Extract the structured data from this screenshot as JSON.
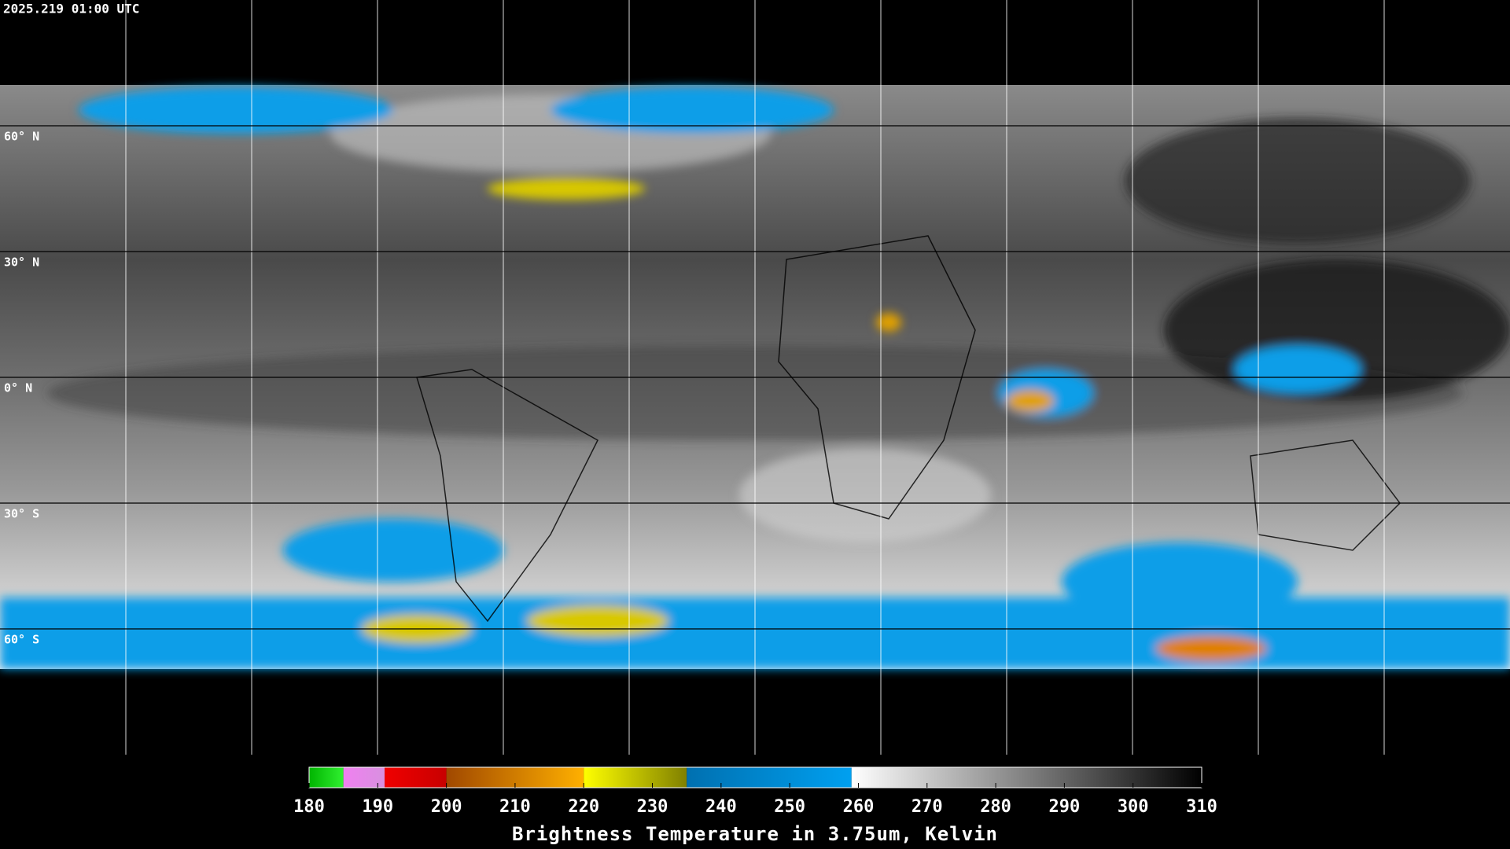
{
  "header": {
    "timestamp": "2025.219 01:00 UTC"
  },
  "map": {
    "lat_labels": [
      "60° N",
      "30° N",
      "0° N",
      "30° S",
      "60° S"
    ]
  },
  "colorbar": {
    "title": "Brightness Temperature in 3.75um, Kelvin",
    "range": [
      180,
      310
    ],
    "ticks": [
      180,
      190,
      200,
      210,
      220,
      230,
      240,
      250,
      260,
      270,
      280,
      290,
      300,
      310
    ],
    "segments": [
      {
        "from": 180,
        "to": 185,
        "colors": [
          "#00b400",
          "#30f030"
        ]
      },
      {
        "from": 185,
        "to": 191,
        "colors": [
          "#f080f0",
          "#d890e0"
        ]
      },
      {
        "from": 191,
        "to": 200,
        "colors": [
          "#f00000",
          "#c80000"
        ]
      },
      {
        "from": 200,
        "to": 220,
        "colors": [
          "#a04800",
          "#ffb000"
        ]
      },
      {
        "from": 220,
        "to": 235,
        "colors": [
          "#ffff00",
          "#808000"
        ]
      },
      {
        "from": 235,
        "to": 259,
        "colors": [
          "#0070b0",
          "#00a0f0"
        ]
      },
      {
        "from": 259,
        "to": 310,
        "colors": [
          "#ffffff",
          "#000000"
        ]
      }
    ]
  }
}
